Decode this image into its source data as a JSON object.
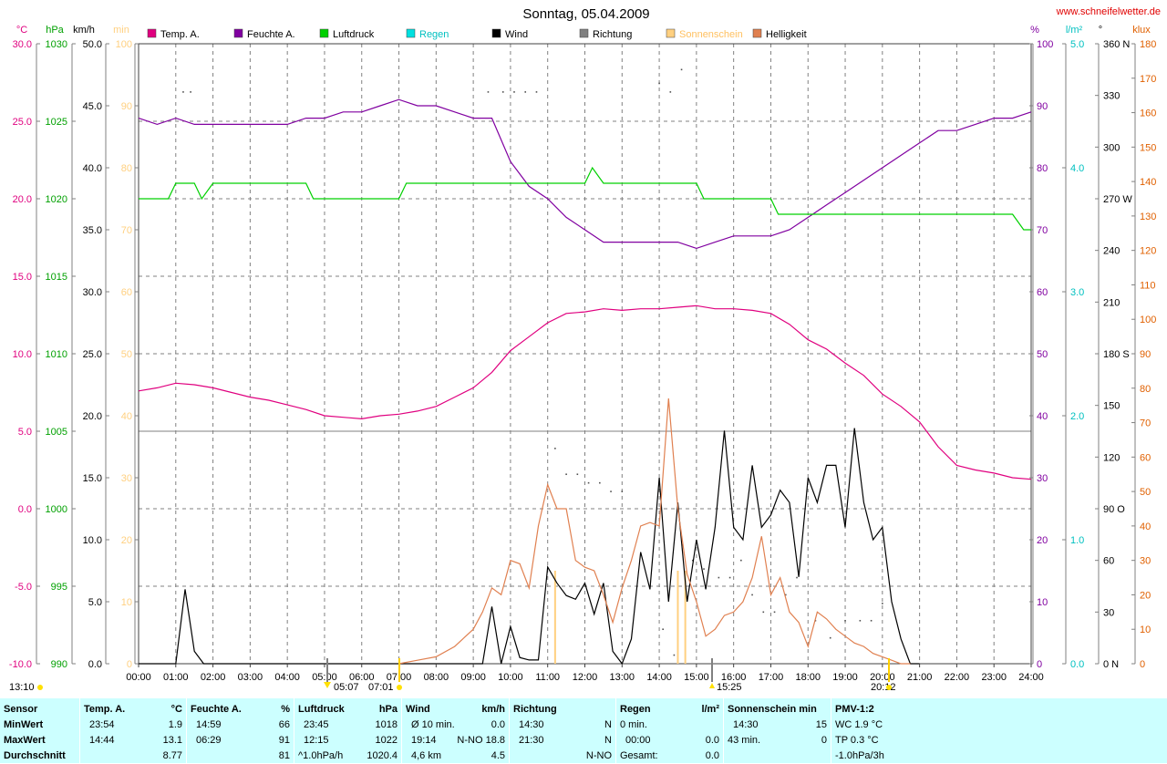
{
  "chart_data": {
    "type": "line",
    "title": "Sonntag, 05.04.2009",
    "watermark": "www.schneifelwetter.de",
    "x_ticks": [
      "00:00",
      "01:00",
      "02:00",
      "03:00",
      "04:00",
      "05:00",
      "06:00",
      "07:00",
      "08:00",
      "09:00",
      "10:00",
      "11:00",
      "12:00",
      "13:00",
      "14:00",
      "15:00",
      "16:00",
      "17:00",
      "18:00",
      "19:00",
      "20:00",
      "21:00",
      "22:00",
      "23:00",
      "24:00"
    ],
    "x_range_hours": [
      0,
      24
    ],
    "grid": true,
    "legend_position": "top",
    "legend": [
      {
        "label": "Temp. A.",
        "color": "#e0007f"
      },
      {
        "label": "Feuchte A.",
        "color": "#8000a0"
      },
      {
        "label": "Luftdruck",
        "color": "#00d000"
      },
      {
        "label": "Regen",
        "color": "#00e0e0"
      },
      {
        "label": "Wind",
        "color": "#000000"
      },
      {
        "label": "Richtung",
        "color": "#808080"
      },
      {
        "label": "Sonnenschein",
        "color": "#ffd080"
      },
      {
        "label": "Helligkeit",
        "color": "#e08050"
      }
    ],
    "axes": {
      "temp": {
        "unit": "°C",
        "color": "#e0007f",
        "range": [
          -10,
          30
        ],
        "ticks": [
          "-10.0",
          "-5.0",
          "0.0",
          "5.0",
          "10.0",
          "15.0",
          "20.0",
          "25.0",
          "30.0"
        ]
      },
      "pressure": {
        "unit": "hPa",
        "color": "#00a000",
        "range": [
          990,
          1030
        ],
        "ticks": [
          "990",
          "995",
          "1000",
          "1005",
          "1010",
          "1015",
          "1020",
          "1025",
          "1030"
        ]
      },
      "wind": {
        "unit": "km/h",
        "color": "#000000",
        "range": [
          0,
          50
        ],
        "ticks": [
          "0.0",
          "5.0",
          "10.0",
          "15.0",
          "20.0",
          "25.0",
          "30.0",
          "35.0",
          "40.0",
          "45.0",
          "50.0"
        ]
      },
      "sunshine": {
        "unit": "min",
        "color": "#ffd080",
        "range": [
          0,
          100
        ],
        "ticks": [
          "0",
          "10",
          "20",
          "30",
          "40",
          "50",
          "60",
          "70",
          "80",
          "90",
          "100"
        ]
      },
      "humidity": {
        "unit": "%",
        "color": "#8000a0",
        "range": [
          0,
          100
        ],
        "ticks": [
          "0",
          "10",
          "20",
          "30",
          "40",
          "50",
          "60",
          "70",
          "80",
          "90",
          "100"
        ]
      },
      "rain": {
        "unit": "l/m²",
        "color": "#00c0c0",
        "range": [
          0,
          5
        ],
        "ticks": [
          "0.0",
          "1.0",
          "2.0",
          "3.0",
          "4.0",
          "5.0"
        ]
      },
      "direction": {
        "unit": "°",
        "color": "#000000",
        "range": [
          0,
          360
        ],
        "ticks": [
          "0 N",
          "30",
          "60",
          "90 O",
          "120",
          "150",
          "180 S",
          "210",
          "240",
          "270 W",
          "300",
          "330",
          "360 N"
        ]
      },
      "brightness": {
        "unit": "klux",
        "color": "#e06000",
        "range": [
          0,
          180
        ],
        "ticks": [
          "0",
          "10",
          "20",
          "30",
          "40",
          "50",
          "60",
          "70",
          "80",
          "90",
          "100",
          "110",
          "120",
          "130",
          "140",
          "150",
          "160",
          "170",
          "180"
        ]
      }
    },
    "series": [
      {
        "name": "Temp. A.",
        "axis": "temp",
        "color": "#e0007f",
        "x": [
          0,
          0.5,
          1,
          1.5,
          2,
          2.5,
          3,
          3.5,
          4,
          4.5,
          5,
          5.5,
          6,
          6.5,
          7,
          7.5,
          8,
          8.5,
          9,
          9.5,
          10,
          10.5,
          11,
          11.5,
          12,
          12.5,
          13,
          13.5,
          14,
          14.5,
          15,
          15.5,
          16,
          16.5,
          17,
          17.5,
          18,
          18.5,
          19,
          19.5,
          20,
          20.5,
          21,
          21.5,
          22,
          22.5,
          23,
          23.5,
          24
        ],
        "values": [
          7.6,
          7.8,
          8.1,
          8.0,
          7.8,
          7.5,
          7.2,
          7.0,
          6.7,
          6.4,
          6.0,
          5.9,
          5.8,
          6.0,
          6.1,
          6.3,
          6.6,
          7.2,
          7.8,
          8.8,
          10.2,
          11.1,
          12.0,
          12.6,
          12.7,
          12.9,
          12.8,
          12.9,
          12.9,
          13.0,
          13.1,
          12.9,
          12.9,
          12.8,
          12.6,
          11.9,
          10.9,
          10.3,
          9.4,
          8.6,
          7.4,
          6.6,
          5.6,
          4.0,
          2.8,
          2.5,
          2.3,
          2.0,
          1.9
        ]
      },
      {
        "name": "Feuchte A.",
        "axis": "humidity",
        "color": "#8000a0",
        "x": [
          0,
          0.5,
          1,
          1.5,
          2,
          2.5,
          3,
          3.5,
          4,
          4.5,
          5,
          5.5,
          6,
          6.5,
          7,
          7.5,
          8,
          8.5,
          9,
          9.5,
          10,
          10.5,
          11,
          11.5,
          12,
          12.5,
          13,
          13.5,
          14,
          14.5,
          15,
          15.5,
          16,
          16.5,
          17,
          17.5,
          18,
          18.5,
          19,
          19.5,
          20,
          20.5,
          21,
          21.5,
          22,
          22.5,
          23,
          23.5,
          24
        ],
        "values": [
          88,
          87,
          88,
          87,
          87,
          87,
          87,
          87,
          87,
          88,
          88,
          89,
          89,
          90,
          91,
          90,
          90,
          89,
          88,
          88,
          81,
          77,
          75,
          72,
          70,
          68,
          68,
          68,
          68,
          68,
          67,
          68,
          69,
          69,
          69,
          70,
          72,
          74,
          76,
          78,
          80,
          82,
          84,
          86,
          86,
          87,
          88,
          88,
          89
        ]
      },
      {
        "name": "Luftdruck",
        "axis": "pressure",
        "color": "#00d000",
        "x": [
          0,
          0.8,
          1,
          1.5,
          1.7,
          2,
          4.5,
          4.7,
          7,
          7.2,
          11,
          12,
          12.2,
          12.5,
          15,
          15.2,
          17,
          17.2,
          20,
          20.5,
          23.5,
          23.8,
          24
        ],
        "values": [
          1020,
          1020,
          1021,
          1021,
          1020,
          1021,
          1021,
          1020,
          1020,
          1021,
          1021,
          1021,
          1022,
          1021,
          1021,
          1020,
          1020,
          1019,
          1019,
          1019,
          1019,
          1018,
          1018
        ]
      },
      {
        "name": "Wind",
        "axis": "wind",
        "color": "#000000",
        "x": [
          0,
          0.5,
          1,
          1.25,
          1.5,
          1.75,
          2,
          3,
          4,
          5,
          6,
          7,
          8,
          9,
          9.25,
          9.5,
          9.75,
          10,
          10.25,
          10.5,
          10.75,
          11,
          11.25,
          11.5,
          11.75,
          12,
          12.25,
          12.5,
          12.75,
          13,
          13.25,
          13.5,
          13.75,
          14,
          14.25,
          14.5,
          14.75,
          15,
          15.25,
          15.5,
          15.75,
          16,
          16.25,
          16.5,
          16.75,
          17,
          17.25,
          17.5,
          17.75,
          18,
          18.25,
          18.5,
          18.75,
          19,
          19.25,
          19.5,
          19.75,
          20,
          20.25,
          20.5,
          20.75,
          21
        ],
        "values": [
          0,
          0,
          0,
          6,
          1,
          0,
          0,
          0,
          0,
          0,
          0,
          0,
          0,
          0,
          0,
          4.6,
          0,
          3,
          0.5,
          0.3,
          0.3,
          7.8,
          6.5,
          5.5,
          5.2,
          6.5,
          4,
          6.5,
          1,
          0,
          2,
          9,
          6,
          15,
          5,
          13,
          5,
          10,
          6,
          11,
          18.8,
          11,
          10,
          16,
          11,
          12,
          14,
          13,
          7,
          15,
          13,
          16,
          16,
          11,
          19,
          13,
          10,
          11,
          5,
          2,
          0,
          0
        ]
      },
      {
        "name": "Helligkeit",
        "axis": "brightness",
        "color": "#e08050",
        "x": [
          7,
          7.5,
          8,
          8.5,
          9,
          9.25,
          9.5,
          9.75,
          10,
          10.25,
          10.5,
          10.75,
          11,
          11.25,
          11.5,
          11.75,
          12,
          12.25,
          12.5,
          12.75,
          13,
          13.25,
          13.5,
          13.75,
          14,
          14.25,
          14.5,
          14.75,
          15,
          15.25,
          15.5,
          15.75,
          16,
          16.25,
          16.5,
          16.75,
          17,
          17.25,
          17.5,
          17.75,
          18,
          18.25,
          18.5,
          18.75,
          19,
          19.25,
          19.5,
          19.75,
          20,
          20.25,
          20.5,
          20.75
        ],
        "values": [
          0,
          1,
          2,
          5,
          10,
          15,
          22,
          20,
          30,
          29,
          22,
          40,
          52,
          45,
          45,
          30,
          28,
          27,
          20,
          12,
          22,
          30,
          40,
          41,
          40,
          77,
          45,
          26,
          18,
          8,
          10,
          14,
          15,
          18,
          25,
          37,
          20,
          25,
          15,
          12,
          5,
          15,
          13,
          10,
          8,
          6,
          5,
          3,
          2,
          1,
          0,
          0
        ]
      }
    ],
    "sunshine_bars": [
      {
        "x": 11.2,
        "value": 15
      },
      {
        "x": 14.5,
        "value": 15
      },
      {
        "x": 14.7,
        "value": 15
      }
    ],
    "direction_points": [
      {
        "x": 1.2,
        "value": 332
      },
      {
        "x": 1.4,
        "value": 332
      },
      {
        "x": 9.4,
        "value": 332
      },
      {
        "x": 9.8,
        "value": 332
      },
      {
        "x": 10.1,
        "value": 332
      },
      {
        "x": 10.4,
        "value": 332
      },
      {
        "x": 10.7,
        "value": 332
      },
      {
        "x": 11.2,
        "value": 125
      },
      {
        "x": 11.5,
        "value": 110
      },
      {
        "x": 11.8,
        "value": 110
      },
      {
        "x": 12.1,
        "value": 105
      },
      {
        "x": 12.4,
        "value": 105
      },
      {
        "x": 12.7,
        "value": 100
      },
      {
        "x": 13.0,
        "value": 100
      },
      {
        "x": 14.0,
        "value": 337
      },
      {
        "x": 14.3,
        "value": 332
      },
      {
        "x": 14.6,
        "value": 345
      },
      {
        "x": 14.9,
        "value": 60
      },
      {
        "x": 15.2,
        "value": 55
      },
      {
        "x": 15.6,
        "value": 50
      },
      {
        "x": 15.9,
        "value": 50
      },
      {
        "x": 16.2,
        "value": 60
      },
      {
        "x": 16.5,
        "value": 40
      },
      {
        "x": 16.8,
        "value": 30
      },
      {
        "x": 17.1,
        "value": 30
      },
      {
        "x": 17.4,
        "value": 40
      },
      {
        "x": 17.7,
        "value": 50
      },
      {
        "x": 14.1,
        "value": 20
      },
      {
        "x": 14.4,
        "value": 5
      },
      {
        "x": 18.2,
        "value": 25
      },
      {
        "x": 18.6,
        "value": 15
      },
      {
        "x": 19.0,
        "value": 25
      },
      {
        "x": 19.4,
        "value": 25
      },
      {
        "x": 19.7,
        "value": 25
      },
      {
        "x": 20.0,
        "value": 35
      }
    ],
    "annotations": {
      "left_time": "13:10",
      "sunrise": "05:07",
      "daylight_start": "07:01",
      "noon_marker": "15:25",
      "sunset": "20:12"
    }
  },
  "stats": {
    "sensor": {
      "header": "Sensor",
      "rows": [
        "MinWert",
        "MaxWert",
        "Durchschnitt"
      ]
    },
    "temp": {
      "header": "Temp. A.",
      "unit": "°C",
      "min_time": "23:54",
      "min": "1.9",
      "max_time": "14:44",
      "max": "13.1",
      "avg": "8.77"
    },
    "feuchte": {
      "header": "Feuchte A.",
      "unit": "%",
      "min_time": "14:59",
      "min": "66",
      "max_time": "06:29",
      "max": "91",
      "avg": "81"
    },
    "luftdruck": {
      "header": "Luftdruck",
      "unit": "hPa",
      "min_time": "23:45",
      "min": "1018",
      "max_time": "12:15",
      "max": "1022",
      "avg_note": "^1.0hPa/h",
      "avg": "1020.4"
    },
    "wind": {
      "header": "Wind",
      "unit": "km/h",
      "r1_label": "Ø 10 min.",
      "r1_val": "0.0",
      "r2_time": "19:14",
      "r2_dir": "N-NO",
      "r2_val": "18.8",
      "r3_label": "4,6 km",
      "r3_val": "4.5"
    },
    "richtung": {
      "header": "Richtung",
      "r1_time": "14:30",
      "r1_val": "N",
      "r2_time": "21:30",
      "r2_val": "N",
      "r3_val": "N-NO"
    },
    "regen": {
      "header": "Regen",
      "unit": "l/m²",
      "r1_label": "0 min.",
      "r2_time": "00:00",
      "r2_val": "0.0",
      "r3_label": "Gesamt:",
      "r3_val": "0.0"
    },
    "sonne": {
      "header": "Sonnenschein min",
      "r1_time": "14:30",
      "r1_val": "15",
      "r2_label": "43 min.",
      "r2_val": "0"
    },
    "pmv": {
      "header": "PMV-1:2",
      "r1": "WC 1.9 °C",
      "r2": "TP 0.3 °C",
      "r3": "-1.0hPa/3h"
    }
  }
}
